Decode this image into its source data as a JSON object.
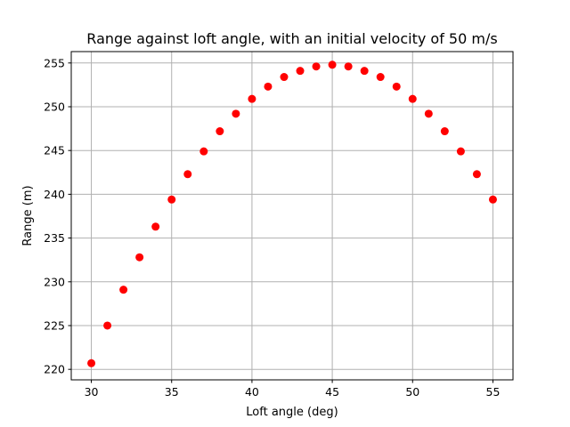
{
  "chart_data": {
    "type": "scatter",
    "title": "Range against loft angle, with an initial velocity of 50 m/s",
    "xlabel": "Loft angle (deg)",
    "ylabel": "Range (m)",
    "xlim": [
      28.75,
      56.25
    ],
    "ylim": [
      218.8,
      256.3
    ],
    "xticks": [
      30,
      35,
      40,
      45,
      50,
      55
    ],
    "yticks": [
      220,
      225,
      230,
      235,
      240,
      245,
      250,
      255
    ],
    "grid": true,
    "marker_color": "#ff0000",
    "x": [
      30,
      31,
      32,
      33,
      34,
      35,
      36,
      37,
      38,
      39,
      40,
      41,
      42,
      43,
      44,
      45,
      46,
      47,
      48,
      49,
      50,
      51,
      52,
      53,
      54,
      55
    ],
    "y": [
      220.7,
      225.0,
      229.1,
      232.8,
      236.3,
      239.4,
      242.3,
      244.9,
      247.2,
      249.2,
      250.9,
      252.3,
      253.4,
      254.1,
      254.6,
      254.8,
      254.6,
      254.1,
      253.4,
      252.3,
      250.9,
      249.2,
      247.2,
      244.9,
      242.3,
      239.4
    ]
  }
}
